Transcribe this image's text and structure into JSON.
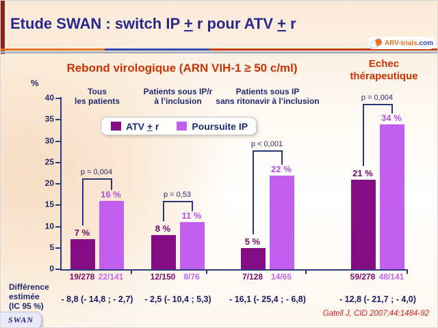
{
  "slide": {
    "title": {
      "p1": "Etude SWAN : switch IP ",
      "plus1": "+",
      "p2": " r pour ATV ",
      "plus2": "+",
      "p3": " r"
    },
    "logo": {
      "brand": "ARV-trials",
      "tld": "com"
    },
    "tag": "SWAN",
    "citation": "Gatell J, CID 2007;44:1484-92"
  },
  "chart_data": {
    "type": "bar",
    "title": "Rebond virologique (ARN VIH-1 ≥ 50 c/ml)",
    "title_right_line1": "Echec",
    "title_right_line2": "thérapeutique",
    "ylabel": "%",
    "ylim": [
      0,
      40
    ],
    "yticks": [
      0,
      5,
      10,
      15,
      20,
      25,
      30,
      35,
      40
    ],
    "legend": {
      "atv_pre": "ATV ",
      "atv_plus": "+",
      "atv_post": " r",
      "ip": "Poursuite IP"
    },
    "series": [
      {
        "name": "ATV + r",
        "values": [
          7,
          8,
          5,
          21
        ]
      },
      {
        "name": "Poursuite IP",
        "values": [
          16,
          11,
          22,
          34
        ]
      }
    ],
    "groups": [
      {
        "label1": "Tous",
        "label2": "les patients",
        "p": "p = 0,004",
        "atv_value": 7,
        "ip_value": 16,
        "atv_pct": "7 %",
        "ip_pct": "16 %",
        "atv_n": "19/278",
        "ip_n": "22/141",
        "diff": "- 8,8 (- 14,8 ; - 2,7)"
      },
      {
        "label1": "Patients sous IP/r",
        "label2": "à l’inclusion",
        "p": "p = 0,53",
        "atv_value": 8,
        "ip_value": 11,
        "atv_pct": "8 %",
        "ip_pct": "11 %",
        "atv_n": "12/150",
        "ip_n": "8/76",
        "diff": "- 2,5 (- 10,4 ; 5,3)"
      },
      {
        "label1": "Patients sous IP",
        "label2": "sans ritonavir à l’inclusion",
        "p": "p < 0,001",
        "atv_value": 5,
        "ip_value": 22,
        "atv_pct": "5 %",
        "ip_pct": "22 %",
        "atv_n": "7/128",
        "ip_n": "14/65",
        "diff": "- 16,1 (- 25,4 ; - 6,8)"
      },
      {
        "label1": "",
        "label2": "",
        "p": "p = 0,004",
        "atv_value": 21,
        "ip_value": 34,
        "atv_pct": "21 %",
        "ip_pct": "34 %",
        "atv_n": "59/278",
        "ip_n": "48/141",
        "diff": "- 12,8 (- 21,7 ; - 4,0)"
      }
    ],
    "diff_label_lines": [
      "Différence",
      "estimée",
      "(IC 95 %)"
    ]
  },
  "colors": {
    "atv_bar": "#840d84",
    "ip_bar": "#c35fee",
    "atv_text": "#6e0a5e",
    "ip_text": "#b350e0",
    "navy": "#1f2a6e",
    "heading_red": "#cc3300"
  }
}
